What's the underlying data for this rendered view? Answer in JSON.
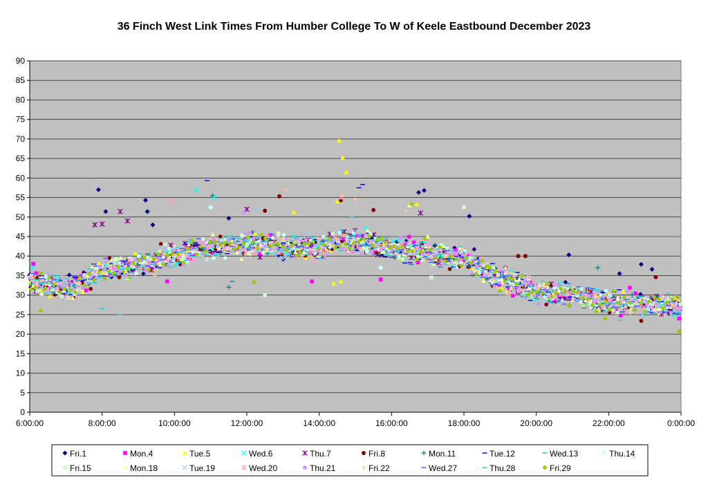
{
  "chart_data": {
    "type": "scatter",
    "title": "36 Finch West Link Times From Humber College To W of Keele Eastbound December 2023",
    "xlabel": "",
    "ylabel": "",
    "x_ticks": [
      "6:00:00",
      "8:00:00",
      "10:00:00",
      "12:00:00",
      "14:00:00",
      "16:00:00",
      "18:00:00",
      "20:00:00",
      "22:00:00",
      "0:00:00"
    ],
    "x_range_hours": [
      6,
      24
    ],
    "y_ticks": [
      0,
      5,
      10,
      15,
      20,
      25,
      30,
      35,
      40,
      45,
      50,
      55,
      60,
      65,
      70,
      75,
      80,
      85,
      90
    ],
    "ylim": [
      0,
      90
    ],
    "grid": "horizontal",
    "legend_position": "bottom",
    "profile": [
      [
        6.0,
        34
      ],
      [
        7.0,
        31.5
      ],
      [
        8.0,
        36
      ],
      [
        9.0,
        38
      ],
      [
        10.0,
        40
      ],
      [
        11.0,
        42.5
      ],
      [
        12.0,
        43
      ],
      [
        13.0,
        42.5
      ],
      [
        14.0,
        42
      ],
      [
        15.0,
        44
      ],
      [
        16.0,
        42
      ],
      [
        17.0,
        41
      ],
      [
        18.0,
        39
      ],
      [
        19.0,
        34
      ],
      [
        20.0,
        31
      ],
      [
        21.0,
        30
      ],
      [
        22.0,
        28
      ],
      [
        23.0,
        28
      ],
      [
        24.0,
        27
      ]
    ],
    "series": [
      {
        "name": "Fri.1",
        "marker": "diamond",
        "color": "#000080",
        "highlights": [
          [
            7.9,
            57.0
          ],
          [
            8.1,
            51.4
          ],
          [
            9.2,
            54.3
          ],
          [
            9.25,
            51.4
          ],
          [
            9.4,
            48.0
          ],
          [
            16.75,
            56.3
          ],
          [
            16.9,
            56.8
          ],
          [
            18.15,
            50.2
          ],
          [
            20.9,
            40.3
          ],
          [
            22.3,
            35.5
          ],
          [
            22.9,
            37.9
          ],
          [
            23.2,
            36.6
          ],
          [
            11.5,
            49.7
          ]
        ]
      },
      {
        "name": "Mon.4",
        "marker": "square",
        "color": "#ff00ff",
        "highlights": [
          [
            6.1,
            38.0
          ],
          [
            9.8,
            33.5
          ],
          [
            13.8,
            33.5
          ],
          [
            15.7,
            34.0
          ],
          [
            23.95,
            24.0
          ]
        ]
      },
      {
        "name": "Tue.5",
        "marker": "triangle",
        "color": "#ffff00",
        "highlights": [
          [
            14.55,
            69.6
          ],
          [
            14.65,
            65.2
          ],
          [
            14.75,
            61.5
          ],
          [
            14.5,
            54.0
          ],
          [
            13.3,
            51.3
          ],
          [
            16.7,
            53.3
          ],
          [
            14.4,
            33.0
          ],
          [
            14.6,
            33.5
          ]
        ]
      },
      {
        "name": "Wed.6",
        "marker": "x",
        "color": "#00ffff",
        "highlights": [
          [
            6.1,
            37.0
          ],
          [
            10.6,
            57.0
          ],
          [
            11.1,
            55.0
          ],
          [
            15.3,
            47.0
          ]
        ]
      },
      {
        "name": "Thu.7",
        "marker": "star",
        "color": "#800080",
        "highlights": [
          [
            7.8,
            48.0
          ],
          [
            8.0,
            48.2
          ],
          [
            8.5,
            51.4
          ],
          [
            8.7,
            49.0
          ],
          [
            12.0,
            52.0
          ],
          [
            16.8,
            51.0
          ]
        ]
      },
      {
        "name": "Fri.8",
        "marker": "circle",
        "color": "#800000",
        "highlights": [
          [
            12.5,
            51.6
          ],
          [
            12.9,
            55.3
          ],
          [
            14.6,
            54.3
          ],
          [
            15.5,
            51.8
          ],
          [
            19.5,
            40.0
          ],
          [
            19.7,
            40.0
          ],
          [
            22.9,
            23.4
          ],
          [
            23.3,
            34.6
          ]
        ]
      },
      {
        "name": "Mon.11",
        "marker": "plus",
        "color": "#008080",
        "highlights": [
          [
            11.05,
            55.5
          ],
          [
            11.5,
            32.0
          ],
          [
            21.7,
            37.0
          ]
        ]
      },
      {
        "name": "Tue.12",
        "marker": "dash",
        "color": "#0000ff",
        "highlights": [
          [
            10.9,
            59.3
          ],
          [
            15.2,
            58.3
          ],
          [
            15.1,
            57.5
          ]
        ]
      },
      {
        "name": "Wed.13",
        "marker": "dash",
        "color": "#00ccff",
        "highlights": [
          [
            8.0,
            26.5
          ],
          [
            8.5,
            25.0
          ],
          [
            14.9,
            50.0
          ]
        ]
      },
      {
        "name": "Thu.14",
        "marker": "circle",
        "color": "#ccffff",
        "highlights": [
          [
            11.0,
            52.5
          ],
          [
            15.7,
            37.0
          ]
        ]
      },
      {
        "name": "Fri.15",
        "marker": "square",
        "color": "#ccffcc",
        "highlights": [
          [
            12.5,
            30.0
          ],
          [
            17.1,
            34.5
          ],
          [
            18.0,
            52.5
          ]
        ]
      },
      {
        "name": "Mon.18",
        "marker": "triangle",
        "color": "#ffff99",
        "highlights": [
          [
            16.5,
            53.0
          ],
          [
            17.0,
            45.0
          ]
        ]
      },
      {
        "name": "Tue.19",
        "marker": "x",
        "color": "#99ccff",
        "highlights": [
          [
            12.3,
            52.0
          ]
        ]
      },
      {
        "name": "Wed.20",
        "marker": "star",
        "color": "#ff99cc",
        "highlights": [
          [
            9.9,
            54.0
          ],
          [
            14.6,
            55.0
          ]
        ]
      },
      {
        "name": "Thu.21",
        "marker": "circle",
        "color": "#cc99ff",
        "highlights": [
          [
            11.9,
            51.0
          ]
        ]
      },
      {
        "name": "Fri.22",
        "marker": "plus",
        "color": "#ffcc99",
        "highlights": [
          [
            13.1,
            57.0
          ],
          [
            14.65,
            55.5
          ],
          [
            16.4,
            51.5
          ],
          [
            15.0,
            54.5
          ]
        ]
      },
      {
        "name": "Wed.27",
        "marker": "dash",
        "color": "#3366ff",
        "highlights": [
          [
            11.6,
            33.5
          ]
        ]
      },
      {
        "name": "Thu.28",
        "marker": "dash",
        "color": "#33cccc",
        "highlights": [
          [
            22.3,
            23.5
          ]
        ]
      },
      {
        "name": "Fri.29",
        "marker": "diamond",
        "color": "#99cc00",
        "highlights": [
          [
            6.3,
            26.0
          ],
          [
            12.2,
            33.3
          ],
          [
            16.55,
            53.3
          ],
          [
            23.95,
            20.7
          ],
          [
            21.9,
            24.0
          ]
        ]
      }
    ]
  }
}
